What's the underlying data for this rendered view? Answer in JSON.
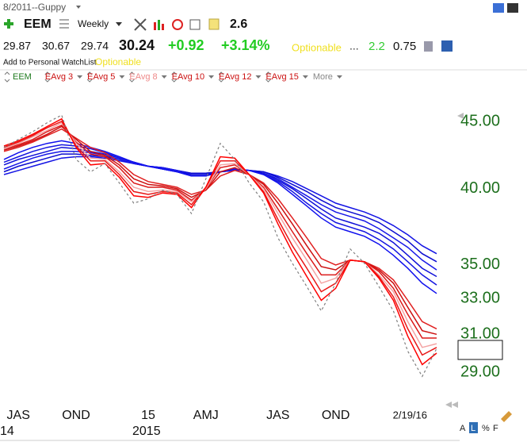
{
  "header": {
    "layout_name": "8/2011--Guppy",
    "symbol": "EEM",
    "period": "Weekly",
    "indicator_value": "2.6",
    "open": "29.87",
    "high": "30.67",
    "low": "29.74",
    "last": "30.24",
    "change": "+0.92",
    "change_pct": "+3.14%",
    "optionable": "Optionable",
    "ellipsis": "...",
    "stat1": "2.2",
    "stat2": "0.75",
    "watchlist_link": "Add to Personal WatchList",
    "optionable_tag": "Optionable",
    "legend_more": "More",
    "footer_buttons": [
      "A",
      "L",
      "%",
      "F"
    ]
  },
  "chart_data": {
    "type": "line",
    "log_scale": true,
    "grid": false,
    "categories": [
      null,
      "JAS",
      null,
      null,
      null,
      "OND",
      null,
      null,
      null,
      null,
      "15",
      null,
      null,
      null,
      "AMJ",
      null,
      null,
      null,
      null,
      "JAS",
      null,
      null,
      null,
      "OND",
      null,
      null,
      null,
      null,
      null,
      null,
      "2/19/16"
    ],
    "category_years": [
      null,
      "14",
      null,
      null,
      null,
      null,
      null,
      null,
      null,
      null,
      "2015",
      null,
      null,
      null,
      null,
      null,
      null,
      null,
      null,
      null,
      null,
      null,
      null,
      null,
      null,
      null,
      null,
      null,
      null,
      null,
      null
    ],
    "ylim": [
      27.6,
      48.1
    ],
    "yticks": [
      {
        "value": 29,
        "label": "29.00"
      },
      {
        "value": 31,
        "label": "31.00"
      },
      {
        "value": 33,
        "label": "33.00"
      },
      {
        "value": 35,
        "label": "35.00"
      },
      {
        "value": 40,
        "label": "40.00"
      },
      {
        "value": 45,
        "label": "45.00"
      }
    ],
    "series": [
      {
        "name": "EEM",
        "color": "#808080",
        "dash": true,
        "legend_color": "#1e7a1e",
        "values": [
          43.0,
          43.6,
          44.2,
          44.9,
          45.5,
          42.1,
          41.2,
          41.8,
          40.4,
          39.0,
          39.3,
          39.9,
          39.6,
          38.3,
          40.7,
          43.3,
          42.1,
          40.4,
          39.1,
          36.7,
          35.1,
          33.7,
          32.3,
          33.9,
          36.0,
          35.1,
          33.7,
          32.3,
          30.1,
          28.8,
          30.24
        ]
      },
      {
        "name": "EAvg 3",
        "color": "#ff0000",
        "legend_color": "#cc1111",
        "values": [
          43.1,
          43.5,
          44.0,
          44.6,
          45.2,
          43.0,
          41.7,
          41.8,
          40.8,
          39.5,
          39.4,
          39.7,
          39.6,
          38.7,
          40.1,
          42.3,
          42.2,
          41.0,
          39.7,
          37.6,
          35.8,
          34.3,
          32.9,
          33.6,
          35.3,
          35.2,
          34.2,
          32.9,
          30.9,
          29.4,
          30.0
        ]
      },
      {
        "name": "EAvg 5",
        "color": "#e81818",
        "legend_color": "#cc1111",
        "values": [
          43.0,
          43.4,
          43.9,
          44.5,
          45.0,
          43.1,
          42.0,
          42.0,
          41.0,
          39.8,
          39.6,
          39.8,
          39.7,
          38.9,
          40.1,
          42.0,
          42.0,
          41.0,
          39.8,
          37.9,
          36.2,
          34.8,
          33.4,
          33.9,
          35.3,
          35.2,
          34.3,
          33.1,
          31.3,
          29.9,
          30.3
        ]
      },
      {
        "name": "EAvg 8",
        "color": "#f4a4a4",
        "legend_color": "#ee8888",
        "values": [
          42.9,
          43.3,
          43.8,
          44.3,
          44.9,
          43.3,
          42.2,
          42.1,
          41.2,
          40.1,
          39.8,
          39.9,
          39.8,
          39.1,
          40.0,
          41.7,
          41.8,
          41.0,
          40.0,
          38.3,
          36.7,
          35.3,
          33.9,
          34.2,
          35.3,
          35.2,
          34.4,
          33.4,
          31.7,
          30.3,
          30.5
        ]
      },
      {
        "name": "EAvg 10",
        "color": "#dc1a1a",
        "legend_color": "#cc1111",
        "values": [
          42.9,
          43.2,
          43.6,
          44.2,
          44.7,
          43.4,
          42.5,
          42.3,
          41.5,
          40.4,
          40.1,
          40.1,
          39.9,
          39.2,
          40.0,
          41.5,
          41.7,
          41.0,
          40.1,
          38.6,
          37.1,
          35.7,
          34.4,
          34.4,
          35.3,
          35.2,
          34.6,
          33.6,
          32.1,
          30.8,
          30.8
        ]
      },
      {
        "name": "EAvg 12",
        "color": "#cc1010",
        "legend_color": "#cc1111",
        "values": [
          42.8,
          43.1,
          43.5,
          44.0,
          44.6,
          43.6,
          42.7,
          42.4,
          41.7,
          40.7,
          40.3,
          40.2,
          40.0,
          39.4,
          39.9,
          41.2,
          41.5,
          41.0,
          40.3,
          39.0,
          37.6,
          36.2,
          34.9,
          34.7,
          35.3,
          35.2,
          34.7,
          33.9,
          32.5,
          31.2,
          31.0
        ]
      },
      {
        "name": "EAvg 15",
        "color": "#e02020",
        "legend_color": "#cc1111",
        "values": [
          42.7,
          43.0,
          43.4,
          43.9,
          44.4,
          43.7,
          43.0,
          42.6,
          41.9,
          41.0,
          40.5,
          40.3,
          40.1,
          39.6,
          39.9,
          40.9,
          41.3,
          41.0,
          40.4,
          39.3,
          38.0,
          36.7,
          35.4,
          35.0,
          35.3,
          35.2,
          34.8,
          34.1,
          32.9,
          31.7,
          31.3
        ]
      },
      {
        "color": "#1010ee",
        "values": [
          42.1,
          42.6,
          43.0,
          43.3,
          43.5,
          43.3,
          43.0,
          42.7,
          42.3,
          41.9,
          41.6,
          41.4,
          41.2,
          40.9,
          40.9,
          41.2,
          41.4,
          41.3,
          41.0,
          40.4,
          39.6,
          38.8,
          38.0,
          37.4,
          37.1,
          36.8,
          36.3,
          35.6,
          34.8,
          33.9,
          33.3
        ]
      },
      {
        "color": "#1515e0",
        "values": [
          41.9,
          42.3,
          42.7,
          43.0,
          43.2,
          43.1,
          42.9,
          42.6,
          42.2,
          41.9,
          41.6,
          41.4,
          41.2,
          40.9,
          40.9,
          41.2,
          41.4,
          41.3,
          41.0,
          40.5,
          39.8,
          39.0,
          38.3,
          37.7,
          37.4,
          37.1,
          36.6,
          36.0,
          35.2,
          34.4,
          33.8
        ]
      },
      {
        "color": "#1010d8",
        "values": [
          41.7,
          42.1,
          42.4,
          42.7,
          43.0,
          42.9,
          42.7,
          42.5,
          42.2,
          41.9,
          41.6,
          41.4,
          41.2,
          41.0,
          41.0,
          41.2,
          41.4,
          41.3,
          41.1,
          40.6,
          40.0,
          39.3,
          38.6,
          38.0,
          37.7,
          37.4,
          37.0,
          36.4,
          35.6,
          34.8,
          34.3
        ]
      },
      {
        "color": "#1818e8",
        "values": [
          41.4,
          41.8,
          42.2,
          42.5,
          42.7,
          42.7,
          42.6,
          42.4,
          42.1,
          41.8,
          41.6,
          41.5,
          41.3,
          41.0,
          41.0,
          41.2,
          41.3,
          41.3,
          41.1,
          40.7,
          40.1,
          39.5,
          38.9,
          38.4,
          38.1,
          37.8,
          37.3,
          36.7,
          36.1,
          35.3,
          34.7
        ]
      },
      {
        "color": "#0c0cd0",
        "values": [
          41.2,
          41.6,
          41.9,
          42.2,
          42.5,
          42.5,
          42.4,
          42.3,
          42.1,
          41.8,
          41.6,
          41.5,
          41.3,
          41.1,
          41.1,
          41.2,
          41.3,
          41.3,
          41.2,
          40.8,
          40.3,
          39.8,
          39.2,
          38.7,
          38.4,
          38.1,
          37.7,
          37.1,
          36.5,
          35.7,
          35.2
        ]
      },
      {
        "color": "#1414e4",
        "values": [
          41.0,
          41.3,
          41.6,
          41.9,
          42.2,
          42.3,
          42.3,
          42.2,
          42.0,
          41.8,
          41.6,
          41.5,
          41.3,
          41.1,
          41.1,
          41.2,
          41.3,
          41.3,
          41.2,
          40.9,
          40.5,
          40.0,
          39.5,
          39.0,
          38.7,
          38.4,
          38.0,
          37.5,
          36.9,
          36.2,
          35.7
        ]
      }
    ]
  }
}
